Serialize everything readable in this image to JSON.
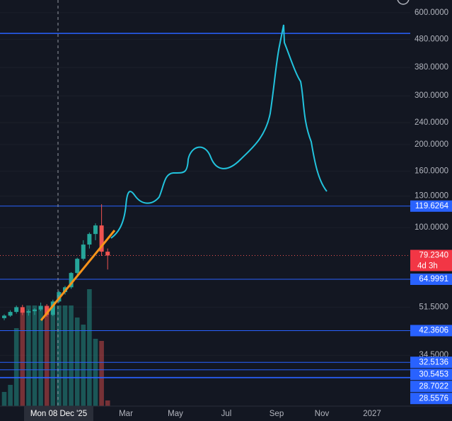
{
  "price_axis": {
    "scale_min": 21.4,
    "scale_max": 667,
    "ticks": [
      {
        "value": 600,
        "label": "600.0000"
      },
      {
        "value": 480,
        "label": "480.0000"
      },
      {
        "value": 380,
        "label": "380.0000"
      },
      {
        "value": 300,
        "label": "300.0000"
      },
      {
        "value": 240,
        "label": "240.0000"
      },
      {
        "value": 200,
        "label": "200.0000"
      },
      {
        "value": 160,
        "label": "160.0000"
      },
      {
        "value": 130,
        "label": "130.0000"
      },
      {
        "value": 100,
        "label": "100.0000"
      },
      {
        "value": 51.5,
        "label": "51.5000"
      },
      {
        "value": 34.5,
        "label": "34.5000"
      }
    ]
  },
  "levels": [
    {
      "value": 505
    },
    {
      "value": 119.6264
    },
    {
      "value": 64.9991
    },
    {
      "value": 42.3606
    },
    {
      "value": 32.5136
    },
    {
      "value": 30.5453
    },
    {
      "value": 28.7022
    },
    {
      "value": 28.5576
    }
  ],
  "last_price": {
    "value": 79.234,
    "label": "79.2340",
    "countdown": "4d 3h"
  },
  "time_axis": {
    "labels": [
      "Mar",
      "May",
      "Jul",
      "Sep",
      "Nov",
      "2027"
    ],
    "crosshair": "Mon 08 Dec '25"
  },
  "candles": [
    {
      "open": 47.0,
      "high": 48.5,
      "low": 46.2,
      "close": 48.0,
      "volume": 20
    },
    {
      "open": 48.0,
      "high": 50.2,
      "low": 47.5,
      "close": 49.5,
      "volume": 30
    },
    {
      "open": 49.5,
      "high": 52.2,
      "low": 48.8,
      "close": 51.5,
      "volume": 110
    },
    {
      "open": 51.5,
      "high": 52.5,
      "low": 48.2,
      "close": 49.2,
      "volume": 136
    },
    {
      "open": 49.2,
      "high": 50.5,
      "low": 48.0,
      "close": 49.8,
      "volume": 142
    },
    {
      "open": 49.8,
      "high": 51.0,
      "low": 48.3,
      "close": 50.5,
      "volume": 142
    },
    {
      "open": 50.5,
      "high": 53.5,
      "low": 49.8,
      "close": 51.9,
      "volume": 142
    },
    {
      "open": 51.9,
      "high": 52.8,
      "low": 47.5,
      "close": 48.3,
      "volume": 142
    },
    {
      "open": 48.3,
      "high": 54.8,
      "low": 47.8,
      "close": 54.0,
      "volume": 142
    },
    {
      "open": 54.0,
      "high": 59.0,
      "low": 53.5,
      "close": 58.4,
      "volume": 142
    },
    {
      "open": 58.4,
      "high": 61.5,
      "low": 57.2,
      "close": 60.8,
      "volume": 142
    },
    {
      "open": 60.8,
      "high": 69.0,
      "low": 60.0,
      "close": 68.5,
      "volume": 142
    },
    {
      "open": 68.5,
      "high": 77.8,
      "low": 67.0,
      "close": 77.1,
      "volume": 125
    },
    {
      "open": 77.1,
      "high": 90.0,
      "low": 76.0,
      "close": 86.8,
      "volume": 115
    },
    {
      "open": 86.8,
      "high": 96.0,
      "low": 84.0,
      "close": 94.8,
      "volume": 165
    },
    {
      "open": 94.8,
      "high": 103.6,
      "low": 90.0,
      "close": 101.8,
      "volume": 95
    },
    {
      "open": 101.8,
      "high": 121.5,
      "low": 79.0,
      "close": 81.8,
      "volume": 92
    },
    {
      "open": 81.8,
      "high": 84.0,
      "low": 70.5,
      "close": 79.234,
      "volume": 8
    }
  ]
}
